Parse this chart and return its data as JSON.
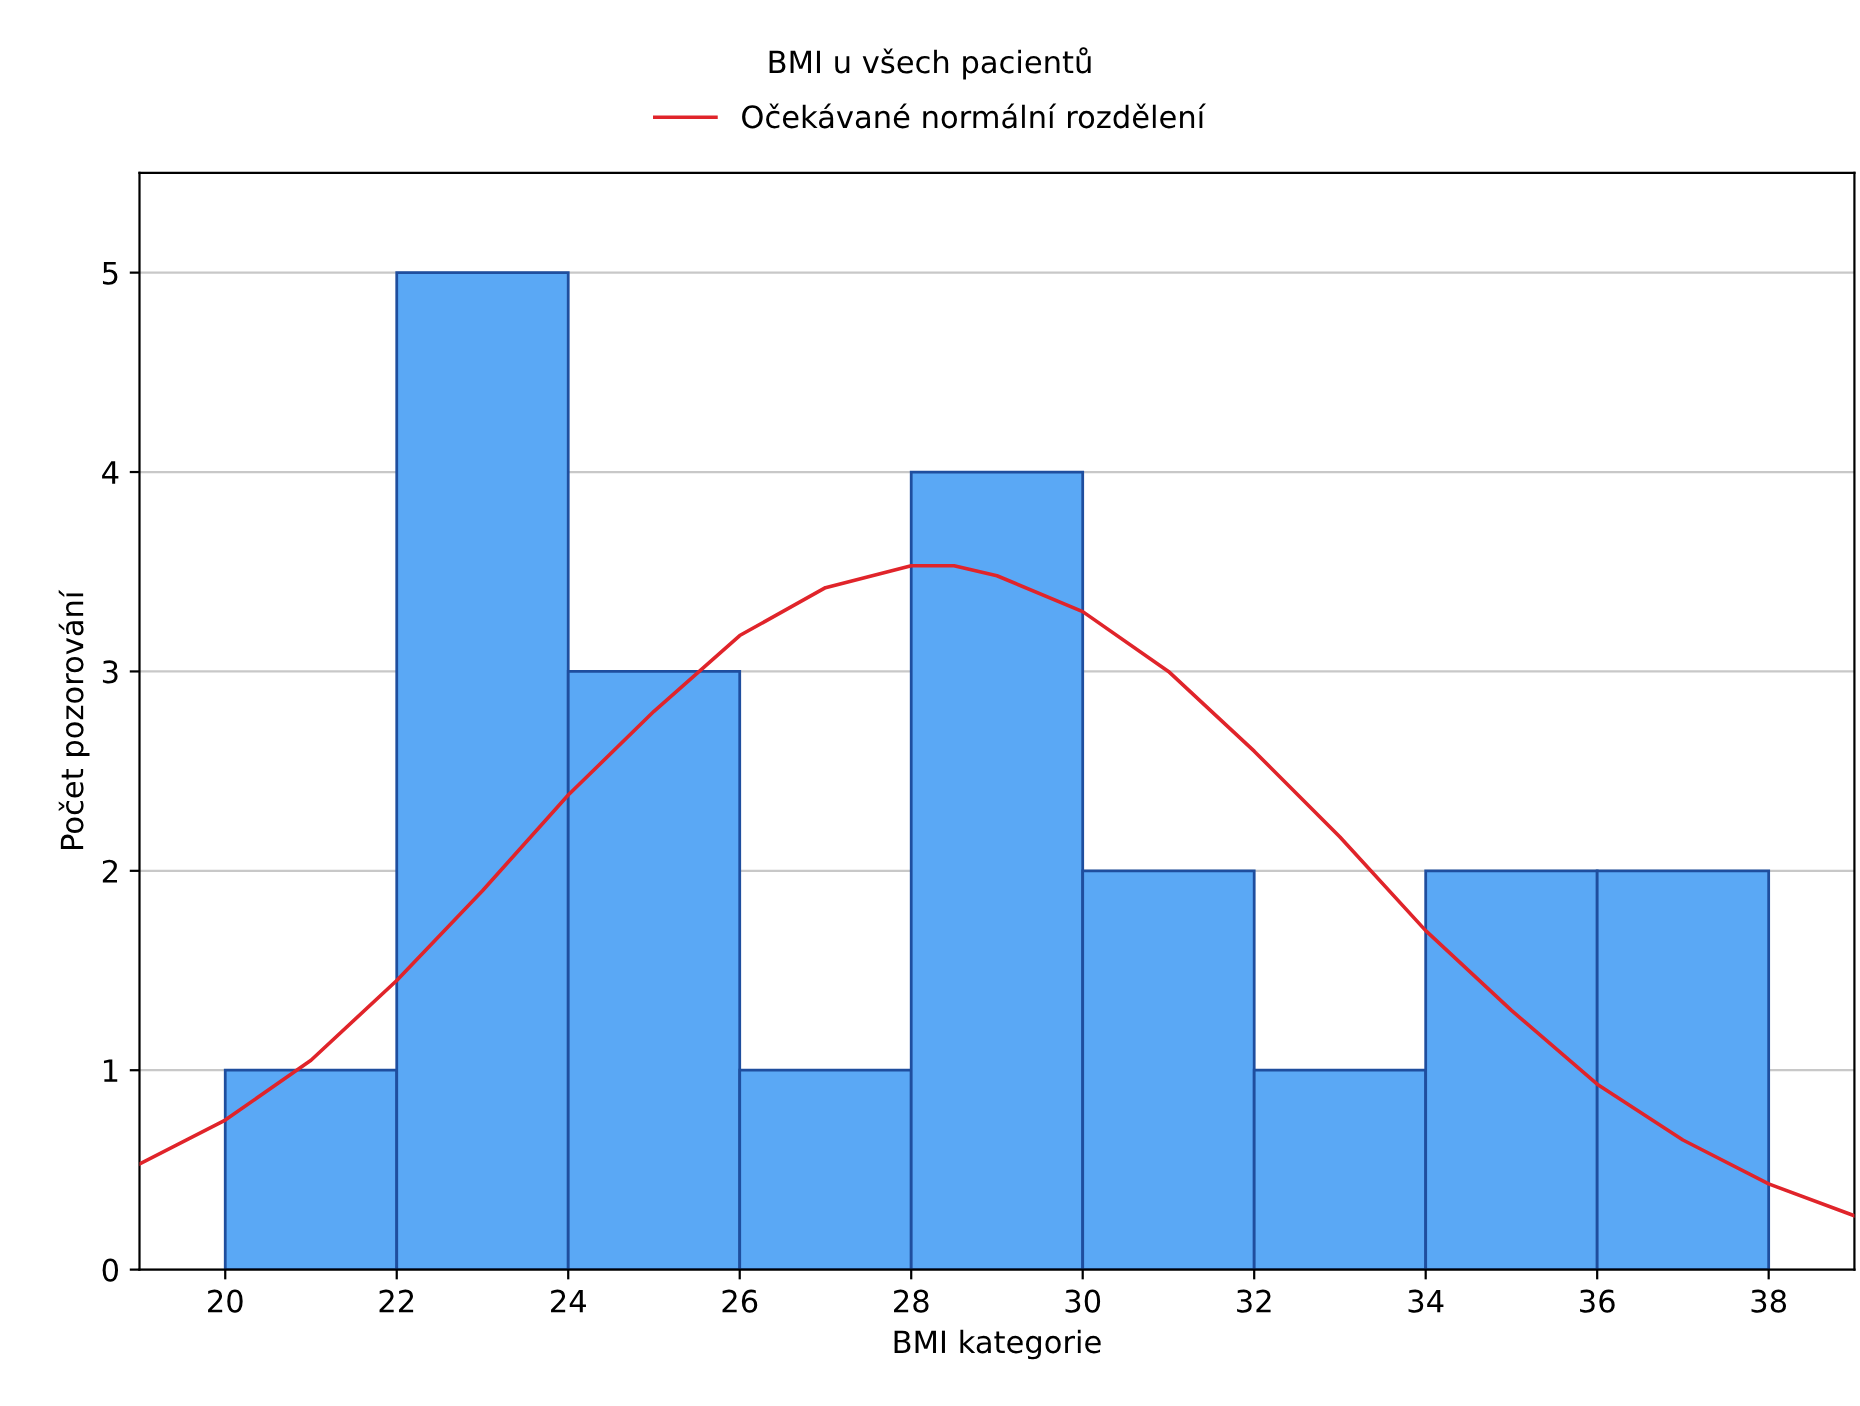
{
  "chart_data": {
    "type": "histogram",
    "title": "BMI u všech pacientů",
    "xlabel": "BMI kategorie",
    "ylabel": "Počet pozorování",
    "bins": [
      20,
      22,
      24,
      26,
      28,
      30,
      32,
      34,
      36,
      38
    ],
    "values": [
      1,
      5,
      3,
      1,
      4,
      2,
      1,
      2,
      2
    ],
    "color": "#5aa8f5",
    "series": [
      {
        "name": "Očekávané normální rozdělení",
        "type": "line",
        "color": "#e0242a",
        "x": [
          19,
          20,
          21,
          22,
          23,
          24,
          25,
          26,
          27,
          28,
          28.5,
          29,
          30,
          31,
          32,
          33,
          34,
          35,
          36,
          37,
          38,
          39
        ],
        "values": [
          0.53,
          0.75,
          1.05,
          1.45,
          1.9,
          2.38,
          2.8,
          3.18,
          3.42,
          3.53,
          3.53,
          3.48,
          3.3,
          3.0,
          2.6,
          2.17,
          1.7,
          1.3,
          0.93,
          0.65,
          0.43,
          0.27
        ]
      }
    ],
    "xlim": [
      19,
      39
    ],
    "xticks": [
      20,
      22,
      24,
      26,
      28,
      30,
      32,
      34,
      36,
      38
    ],
    "ylim": [
      0,
      5.5
    ],
    "yticks": [
      0,
      1,
      2,
      3,
      4,
      5
    ],
    "grid": "y",
    "legend": "top"
  }
}
